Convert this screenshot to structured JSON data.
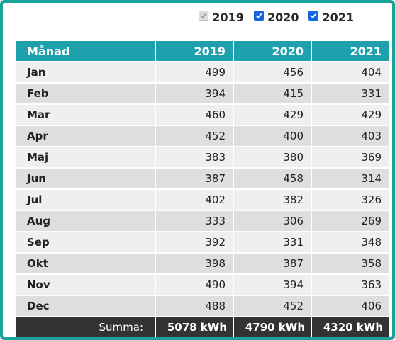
{
  "year_filters": [
    {
      "label": "2019",
      "checked": true,
      "disabled": true
    },
    {
      "label": "2020",
      "checked": true,
      "disabled": false
    },
    {
      "label": "2021",
      "checked": true,
      "disabled": false
    }
  ],
  "table": {
    "headers": [
      "Månad",
      "2019",
      "2020",
      "2021"
    ],
    "rows": [
      {
        "month": "Jan",
        "values": [
          "499",
          "456",
          "404"
        ]
      },
      {
        "month": "Feb",
        "values": [
          "394",
          "415",
          "331"
        ]
      },
      {
        "month": "Mar",
        "values": [
          "460",
          "429",
          "429"
        ]
      },
      {
        "month": "Apr",
        "values": [
          "452",
          "400",
          "403"
        ]
      },
      {
        "month": "Maj",
        "values": [
          "383",
          "380",
          "369"
        ]
      },
      {
        "month": "Jun",
        "values": [
          "387",
          "458",
          "314"
        ]
      },
      {
        "month": "Jul",
        "values": [
          "402",
          "382",
          "326"
        ]
      },
      {
        "month": "Aug",
        "values": [
          "333",
          "306",
          "269"
        ]
      },
      {
        "month": "Sep",
        "values": [
          "392",
          "331",
          "348"
        ]
      },
      {
        "month": "Okt",
        "values": [
          "398",
          "387",
          "358"
        ]
      },
      {
        "month": "Nov",
        "values": [
          "490",
          "394",
          "363"
        ]
      },
      {
        "month": "Dec",
        "values": [
          "488",
          "452",
          "406"
        ]
      }
    ],
    "footer": {
      "label": "Summa:",
      "totals": [
        "5078 kWh",
        "4790 kWh",
        "4320 kWh"
      ]
    }
  },
  "colors": {
    "header": "#1fa0ad",
    "frame": "#1aa39a",
    "footer": "#333333",
    "checkbox": "#1565e0"
  }
}
